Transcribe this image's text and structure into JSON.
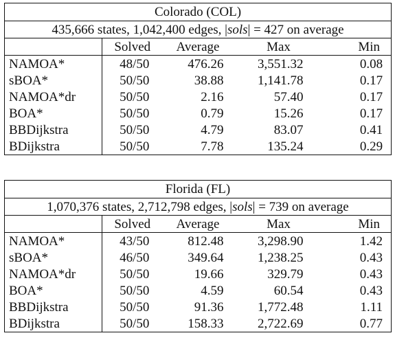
{
  "tables": [
    {
      "title": "Colorado (COL)",
      "info_prefix": "435,666 states, 1,042,400 edges, |",
      "info_sols": "sols",
      "info_suffix": "| = 427 on average",
      "headers": {
        "solved": "Solved",
        "average": "Average",
        "max": "Max",
        "min": "Min"
      },
      "rows": [
        {
          "alg": "NAMOA*",
          "solved": "48/50",
          "average": "476.26",
          "max": "3,551.32",
          "min": "0.08",
          "bold": [
            "min"
          ]
        },
        {
          "alg": "sBOA*",
          "solved": "50/50",
          "average": "38.88",
          "max": "1,141.78",
          "min": "0.17",
          "bold": []
        },
        {
          "alg": "NAMOA*dr",
          "solved": "50/50",
          "average": "2.16",
          "max": "57.40",
          "min": "0.17",
          "bold": []
        },
        {
          "alg": "BOA*",
          "solved": "50/50",
          "average": "0.79",
          "max": "15.26",
          "min": "0.17",
          "bold": [
            "average",
            "max"
          ]
        },
        {
          "alg": "BBDijkstra",
          "solved": "50/50",
          "average": "4.79",
          "max": "83.07",
          "min": "0.41",
          "bold": []
        },
        {
          "alg": "BDijkstra",
          "solved": "50/50",
          "average": "7.78",
          "max": "135.24",
          "min": "0.29",
          "bold": []
        }
      ]
    },
    {
      "title": "Florida (FL)",
      "info_prefix": "1,070,376 states, 2,712,798 edges, |",
      "info_sols": "sols",
      "info_suffix": "| = 739 on average",
      "headers": {
        "solved": "Solved",
        "average": "Average",
        "max": "Max",
        "min": "Min"
      },
      "rows": [
        {
          "alg": "NAMOA*",
          "solved": "43/50",
          "average": "812.48",
          "max": "3,298.90",
          "min": "1.42",
          "bold": []
        },
        {
          "alg": "sBOA*",
          "solved": "46/50",
          "average": "349.64",
          "max": "1,238.25",
          "min": "0.43",
          "bold": [
            "min"
          ]
        },
        {
          "alg": "NAMOA*dr",
          "solved": "50/50",
          "average": "19.66",
          "max": "329.79",
          "min": "0.43",
          "bold": [
            "min"
          ]
        },
        {
          "alg": "BOA*",
          "solved": "50/50",
          "average": "4.59",
          "max": "60.54",
          "min": "0.43",
          "bold": [
            "average",
            "max",
            "min"
          ]
        },
        {
          "alg": "BBDijkstra",
          "solved": "50/50",
          "average": "91.36",
          "max": "1,772.48",
          "min": "1.11",
          "bold": []
        },
        {
          "alg": "BDijkstra",
          "solved": "50/50",
          "average": "158.33",
          "max": "2,722.69",
          "min": "0.77",
          "bold": []
        }
      ]
    }
  ]
}
